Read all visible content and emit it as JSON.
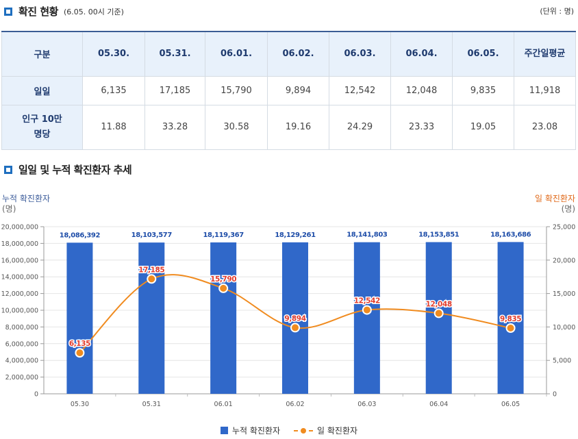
{
  "section1": {
    "title": "확진 현황",
    "subtitle": "(6.05. 00시 기준)",
    "unit": "(단위 : 명)"
  },
  "table": {
    "header": [
      "구분",
      "05.30.",
      "05.31.",
      "06.01.",
      "06.02.",
      "06.03.",
      "06.04.",
      "06.05.",
      "주간일평균"
    ],
    "rows": [
      {
        "label": "일일",
        "values": [
          "6,135",
          "17,185",
          "15,790",
          "9,894",
          "12,542",
          "12,048",
          "9,835",
          "11,918"
        ]
      },
      {
        "label": "인구 10만명당",
        "values": [
          "11.88",
          "33.28",
          "30.58",
          "19.16",
          "24.29",
          "23.33",
          "19.05",
          "23.08"
        ]
      }
    ]
  },
  "section2": {
    "title": "일일 및 누적 확진환자 추세"
  },
  "axis": {
    "left_title": "누적 확진환자",
    "left_unit": "(명)",
    "right_title": "일 확진환자",
    "right_unit": "(명)"
  },
  "legend": {
    "bar": "누적 확진환자",
    "line": "일 확진환자"
  },
  "colors": {
    "bar": "#3068c9",
    "line": "#f08b1f",
    "line_label": "#e23d2d",
    "bar_label": "#1e4da8"
  },
  "chart_data": {
    "type": "bar",
    "categories": [
      "05.30",
      "05.31",
      "06.01",
      "06.02",
      "06.03",
      "06.04",
      "06.05"
    ],
    "series": [
      {
        "name": "누적 확진환자",
        "type": "bar",
        "axis": "left",
        "values": [
          18086392,
          18103577,
          18119367,
          18129261,
          18141803,
          18153851,
          18163686
        ],
        "labels": [
          "18,086,392",
          "18,103,577",
          "18,119,367",
          "18,129,261",
          "18,141,803",
          "18,153,851",
          "18,163,686"
        ]
      },
      {
        "name": "일 확진환자",
        "type": "line",
        "axis": "right",
        "values": [
          6135,
          17185,
          15790,
          9894,
          12542,
          12048,
          9835
        ],
        "labels": [
          "6,135",
          "17,185",
          "15,790",
          "9,894",
          "12,542",
          "12,048",
          "9,835"
        ]
      }
    ],
    "left_axis": {
      "range": [
        0,
        20000000
      ],
      "ticks": [
        "0",
        "2,000,000",
        "4,000,000",
        "6,000,000",
        "8,000,000",
        "10,000,000",
        "12,000,000",
        "14,000,000",
        "16,000,000",
        "18,000,000",
        "20,000,000"
      ]
    },
    "right_axis": {
      "range": [
        0,
        25000
      ],
      "ticks": [
        "0",
        "5,000",
        "10,000",
        "15,000",
        "20,000",
        "25,000"
      ]
    },
    "grid": true,
    "legend_position": "bottom"
  }
}
